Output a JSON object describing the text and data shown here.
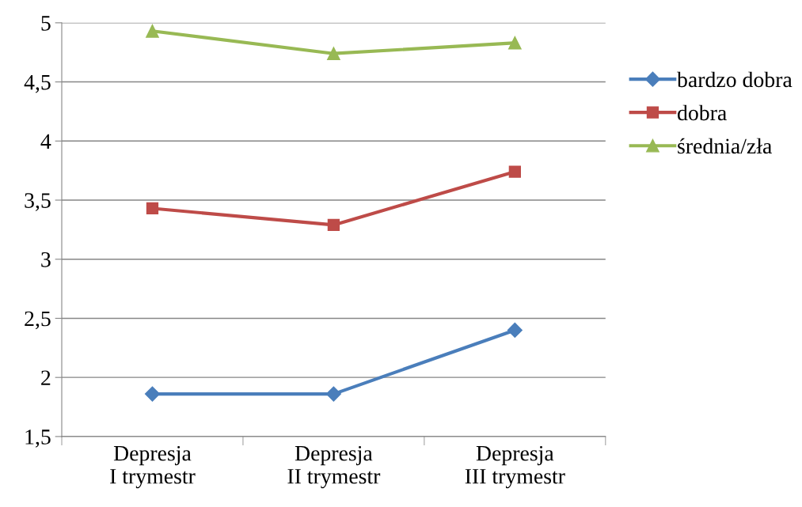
{
  "chart_data": {
    "type": "line",
    "categories": [
      "Depresja\nI trymestr",
      "Depresja\nII trymestr",
      "Depresja\nIII trymestr"
    ],
    "series": [
      {
        "name": "bardzo dobra",
        "color": "#4a7ebb",
        "marker": "diamond",
        "values": [
          1.86,
          1.86,
          2.4
        ]
      },
      {
        "name": "dobra",
        "color": "#be4b48",
        "marker": "square",
        "values": [
          3.43,
          3.29,
          3.74
        ]
      },
      {
        "name": "średnia/zła",
        "color": "#98b954",
        "marker": "triangle",
        "values": [
          4.93,
          4.74,
          4.83
        ]
      }
    ],
    "ylim": [
      1.5,
      5
    ],
    "yticks": [
      {
        "value": 1.5,
        "label": "1,5"
      },
      2,
      {
        "value": 2.5,
        "label": "2,5"
      },
      3,
      {
        "value": 3.5,
        "label": "3,5"
      },
      4,
      {
        "value": 4.5,
        "label": "4,5"
      },
      5
    ],
    "grid": "y",
    "legend": "top right",
    "line_style": "solid"
  }
}
